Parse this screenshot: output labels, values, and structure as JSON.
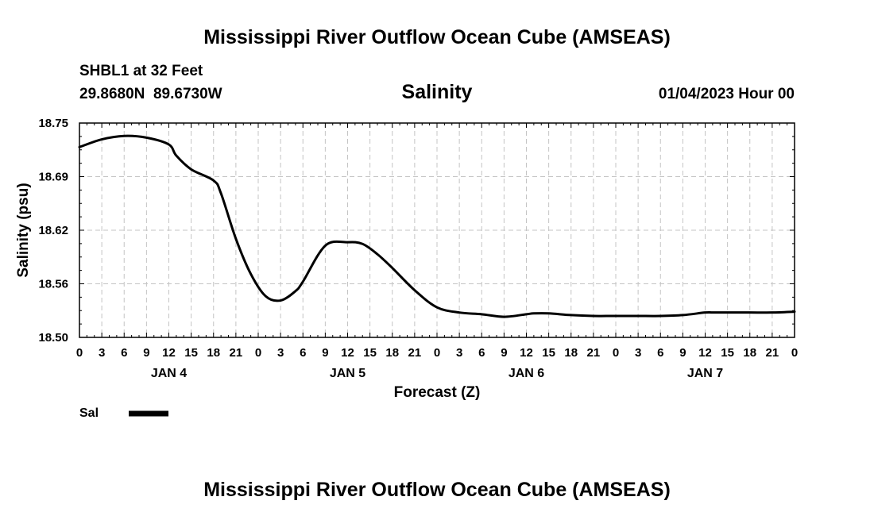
{
  "header": {
    "title": "Mississippi River Outflow Ocean Cube (AMSEAS)",
    "station": "SHBL1 at 32 Feet",
    "coords": "29.8680N  89.6730W",
    "panel_title": "Salinity",
    "timestamp": "01/04/2023 Hour 00"
  },
  "footer": {
    "title": "Mississippi River Outflow Ocean Cube (AMSEAS)"
  },
  "legend": {
    "items": [
      {
        "label": "Sal",
        "color": "#000000"
      }
    ]
  },
  "chart_data": {
    "type": "line",
    "title": "Salinity",
    "xlabel": "Forecast (Z)",
    "ylabel": "Salinity (psu)",
    "ylim": [
      18.5,
      18.75
    ],
    "xlim": [
      0,
      96
    ],
    "y_ticks": [
      "18.50",
      "18.56",
      "18.62",
      "18.69",
      "18.75"
    ],
    "x_tick_labels": [
      "0",
      "3",
      "6",
      "9",
      "12",
      "15",
      "18",
      "21",
      "0",
      "3",
      "6",
      "9",
      "12",
      "15",
      "18",
      "21",
      "0",
      "3",
      "6",
      "9",
      "12",
      "15",
      "18",
      "21",
      "0",
      "3",
      "6",
      "9",
      "12",
      "15",
      "18",
      "21",
      "0"
    ],
    "day_labels": [
      {
        "label": "JAN 4",
        "hour": 12
      },
      {
        "label": "JAN 5",
        "hour": 36
      },
      {
        "label": "JAN 6",
        "hour": 60
      },
      {
        "label": "JAN 7",
        "hour": 84
      }
    ],
    "grid": true,
    "legend_position": "bottom-left",
    "series": [
      {
        "name": "Sal",
        "color": "#000000",
        "x": [
          0,
          3,
          6,
          9,
          12,
          13,
          15,
          18,
          19,
          21,
          23,
          25,
          27,
          29,
          30,
          33,
          36,
          38,
          40,
          42,
          45,
          48,
          51,
          54,
          57,
          60,
          61,
          63,
          66,
          69,
          72,
          75,
          78,
          81,
          84,
          85,
          87,
          90,
          93,
          96
        ],
        "y": [
          18.722,
          18.731,
          18.735,
          18.733,
          18.725,
          18.712,
          18.696,
          18.683,
          18.668,
          18.615,
          18.574,
          18.548,
          18.543,
          18.554,
          18.565,
          18.607,
          18.611,
          18.609,
          18.597,
          18.581,
          18.555,
          18.535,
          18.529,
          18.527,
          18.524,
          18.527,
          18.528,
          18.528,
          18.526,
          18.525,
          18.525,
          18.525,
          18.525,
          18.526,
          18.529,
          18.529,
          18.529,
          18.529,
          18.529,
          18.53
        ]
      }
    ]
  }
}
